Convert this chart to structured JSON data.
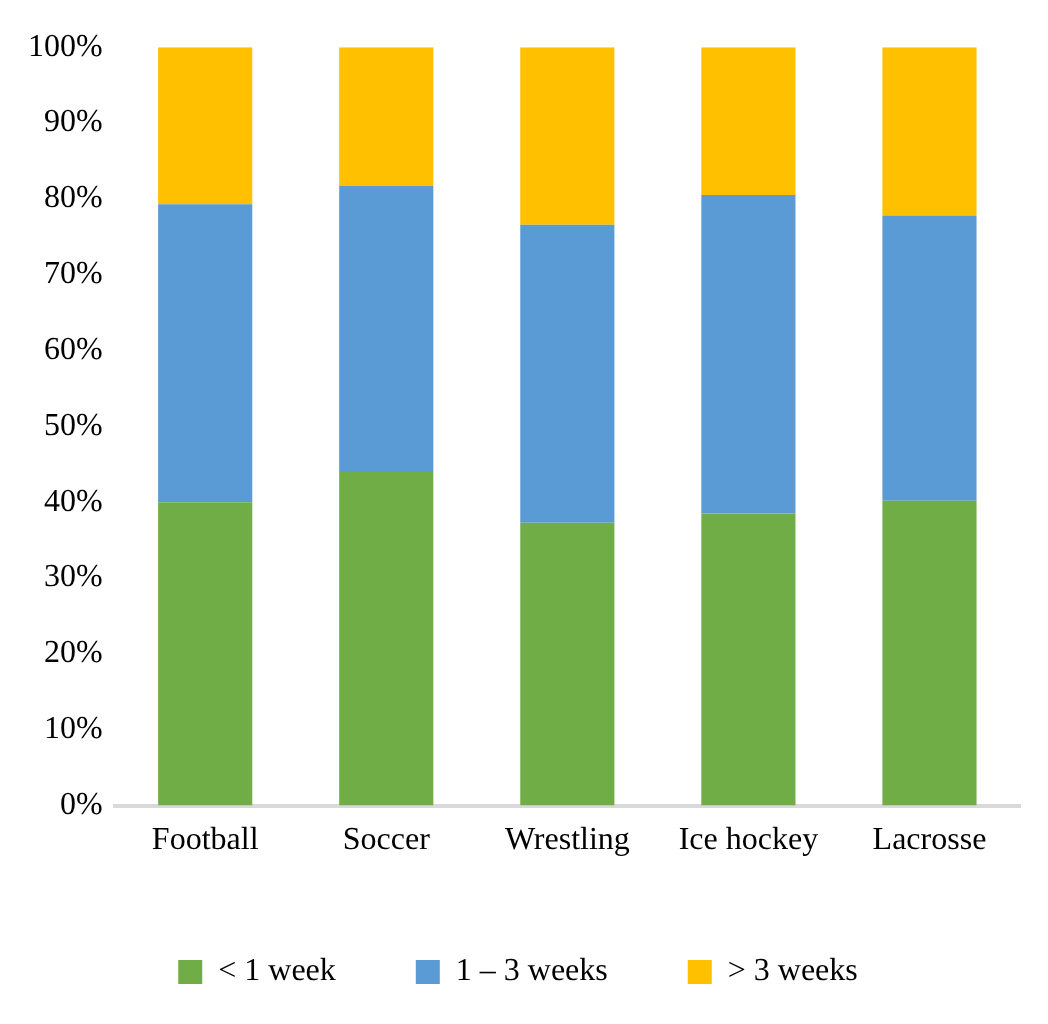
{
  "chart_data": {
    "type": "bar",
    "stacked": true,
    "categories": [
      "Football",
      "Soccer",
      "Wrestling",
      "Ice hockey",
      "Lacrosse"
    ],
    "series": [
      {
        "name": "< 1 week",
        "color": "#70ad47",
        "values": [
          40,
          44,
          37.3,
          38.5,
          40.2
        ]
      },
      {
        "name": "1 – 3 weeks",
        "color": "#5b9bd5",
        "values": [
          39.3,
          37.7,
          39.3,
          42,
          37.6
        ]
      },
      {
        "name": "> 3 weeks",
        "color": "#ffc000",
        "values": [
          20.7,
          18.3,
          23.4,
          19.5,
          22.2
        ]
      }
    ],
    "ylim": [
      0,
      100
    ],
    "yticks": [
      {
        "value": 0,
        "label": "0%"
      },
      {
        "value": 10,
        "label": "10%"
      },
      {
        "value": 20,
        "label": "20%"
      },
      {
        "value": 30,
        "label": "30%"
      },
      {
        "value": 40,
        "label": "40%"
      },
      {
        "value": 50,
        "label": "50%"
      },
      {
        "value": 60,
        "label": "60%"
      },
      {
        "value": 70,
        "label": "70%"
      },
      {
        "value": 80,
        "label": "80%"
      },
      {
        "value": 90,
        "label": "90%"
      },
      {
        "value": 100,
        "label": "100%"
      }
    ],
    "grid": false,
    "legend": "bottom"
  }
}
